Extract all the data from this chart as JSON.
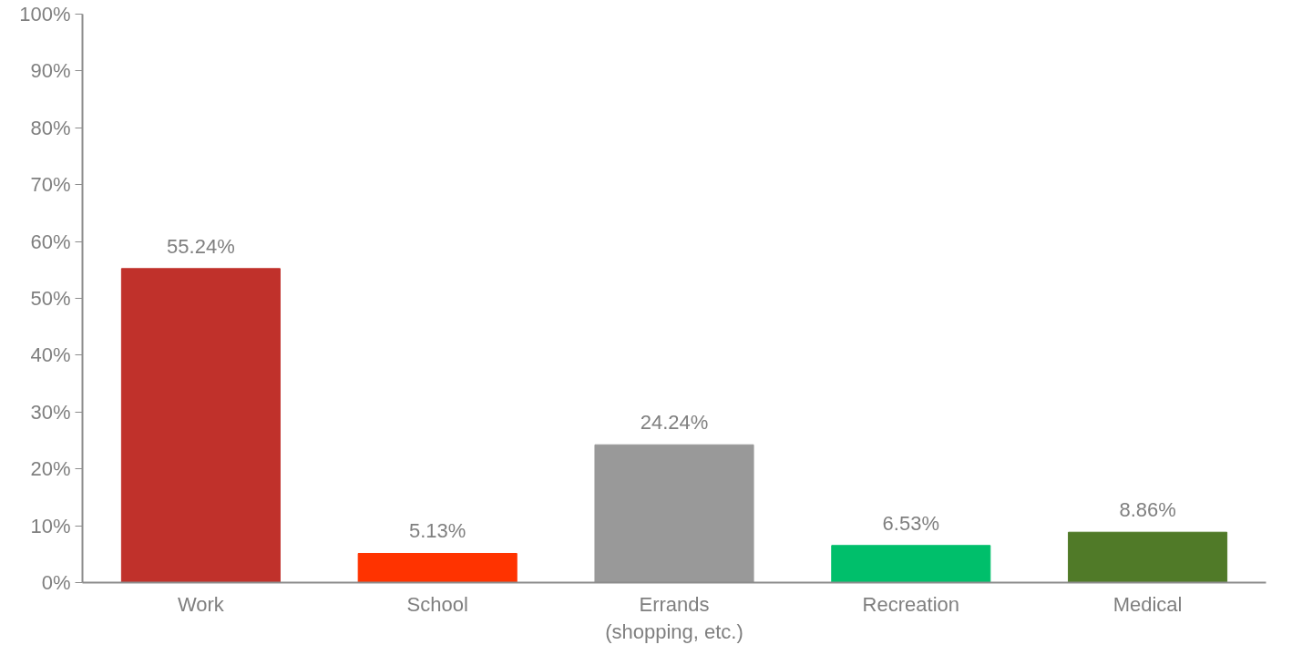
{
  "chart_data": {
    "type": "bar",
    "categories": [
      "Work",
      "School",
      "Errands (shopping, etc.)",
      "Recreation",
      "Medical"
    ],
    "values": [
      55.24,
      5.13,
      24.24,
      6.53,
      8.86
    ],
    "colors": [
      "#c0312b",
      "#ff3300",
      "#999999",
      "#00bf6b",
      "#507a28"
    ],
    "value_labels": [
      "55.24%",
      "5.13%",
      "24.24%",
      "6.53%",
      "8.86%"
    ],
    "ylim": [
      0,
      100
    ],
    "yticks": [
      {
        "value": 0,
        "label": "0%"
      },
      {
        "value": 10,
        "label": "10%"
      },
      {
        "value": 20,
        "label": "20%"
      },
      {
        "value": 30,
        "label": "30%"
      },
      {
        "value": 40,
        "label": "40%"
      },
      {
        "value": 50,
        "label": "50%"
      },
      {
        "value": 60,
        "label": "60%"
      },
      {
        "value": 70,
        "label": "70%"
      },
      {
        "value": 80,
        "label": "80%"
      },
      {
        "value": 90,
        "label": "90%"
      },
      {
        "value": 100,
        "label": "100%"
      }
    ],
    "grid": false
  }
}
